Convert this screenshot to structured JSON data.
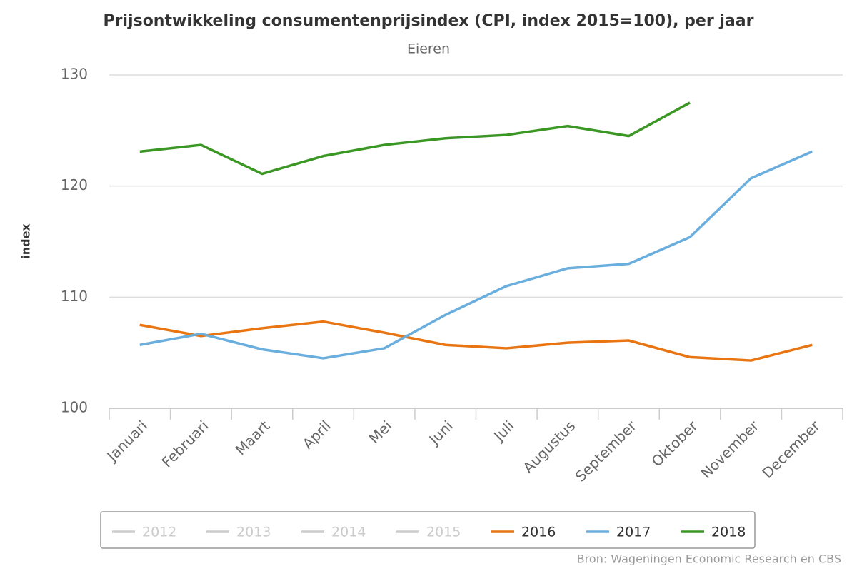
{
  "chart_data": {
    "type": "line",
    "title": "Prijsontwikkeling consumentenprijsindex (CPI, index 2015=100), per jaar",
    "subtitle": "Eieren",
    "y_label": "index",
    "source": "Bron: Wageningen Economic Research en CBS",
    "categories": [
      "Januari",
      "Februari",
      "Maart",
      "April",
      "Mei",
      "Juni",
      "Juli",
      "Augustus",
      "September",
      "Oktober",
      "November",
      "December"
    ],
    "series": [
      {
        "name": "2012",
        "color": "#cccccc",
        "visible": false,
        "values": [
          null,
          null,
          null,
          null,
          null,
          null,
          null,
          null,
          null,
          null,
          null,
          null
        ]
      },
      {
        "name": "2013",
        "color": "#cccccc",
        "visible": false,
        "values": [
          null,
          null,
          null,
          null,
          null,
          null,
          null,
          null,
          null,
          null,
          null,
          null
        ]
      },
      {
        "name": "2014",
        "color": "#cccccc",
        "visible": false,
        "values": [
          null,
          null,
          null,
          null,
          null,
          null,
          null,
          null,
          null,
          null,
          null,
          null
        ]
      },
      {
        "name": "2015",
        "color": "#cccccc",
        "visible": false,
        "values": [
          null,
          null,
          null,
          null,
          null,
          null,
          null,
          null,
          null,
          null,
          null,
          null
        ]
      },
      {
        "name": "2016",
        "color": "#e87511",
        "visible": true,
        "values": [
          107.5,
          106.5,
          107.2,
          107.8,
          106.8,
          105.7,
          105.4,
          105.9,
          106.1,
          104.6,
          104.3,
          105.7
        ]
      },
      {
        "name": "2017",
        "color": "#6aaede",
        "visible": true,
        "values": [
          105.7,
          106.7,
          105.3,
          104.5,
          105.4,
          108.4,
          111.0,
          112.6,
          113.0,
          115.4,
          120.7,
          123.1
        ]
      },
      {
        "name": "2018",
        "color": "#3a9724",
        "visible": true,
        "values": [
          123.1,
          123.7,
          121.1,
          122.7,
          123.7,
          124.3,
          124.6,
          125.4,
          124.5,
          127.5,
          null,
          null
        ]
      }
    ],
    "ylim": [
      100,
      130
    ],
    "yticks": [
      100,
      110,
      120,
      130
    ],
    "grid": true,
    "legend": "bottom"
  }
}
